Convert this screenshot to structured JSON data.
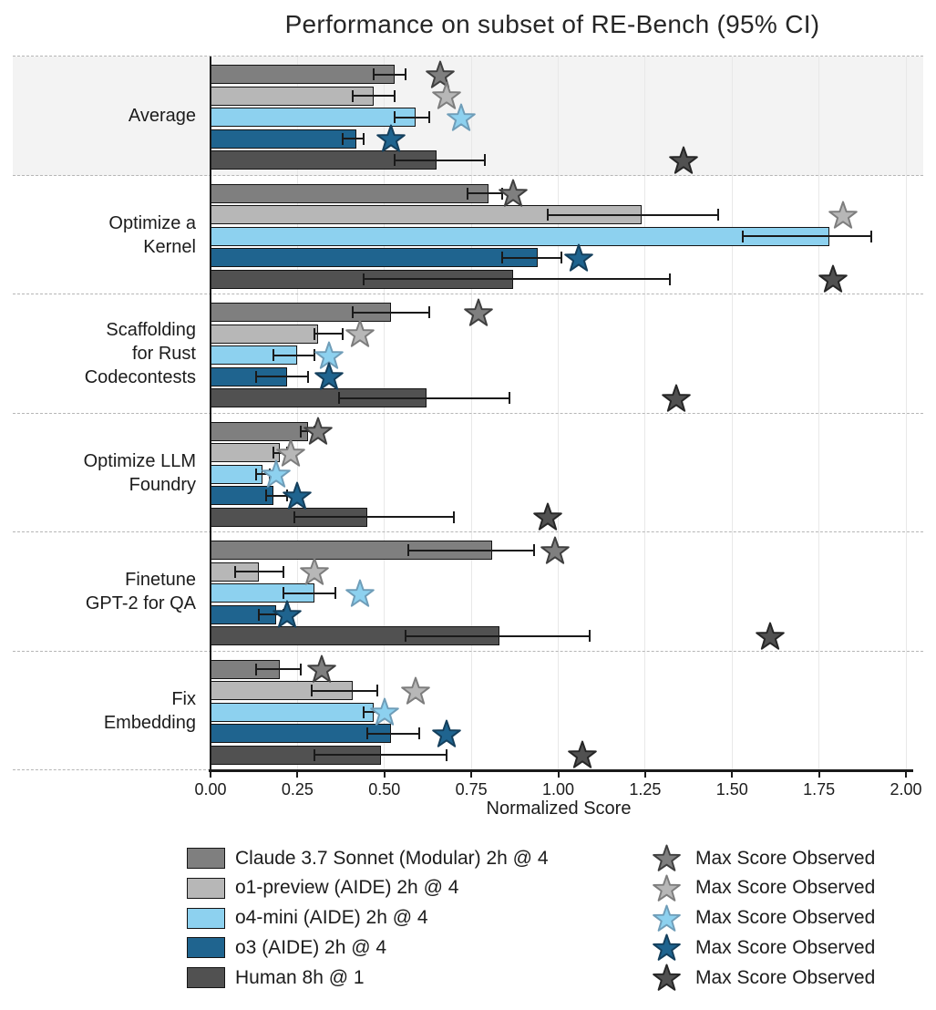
{
  "chart_data": {
    "type": "bar",
    "orientation": "horizontal",
    "title": "Performance on subset of RE-Bench (95% CI)",
    "xlabel": "Normalized Score",
    "xlim": [
      0,
      2.0
    ],
    "xticks": [
      0,
      0.25,
      0.5,
      0.75,
      1.0,
      1.25,
      1.5,
      1.75,
      2.0
    ],
    "xtick_labels": [
      "0.00",
      "0.25",
      "0.50",
      "0.75",
      "1.00",
      "1.25",
      "1.50",
      "1.75",
      "2.00"
    ],
    "grid": "vertical",
    "legend_position": "bottom",
    "highlight_category": "Average",
    "categories": [
      "Average",
      "Optimize a Kernel",
      "Scaffolding for Rust Codecontests",
      "Optimize LLM Foundry",
      "Finetune GPT-2 for QA",
      "Fix Embedding"
    ],
    "category_display": [
      [
        "Average"
      ],
      [
        "Optimize a",
        "Kernel"
      ],
      [
        "Scaffolding",
        "for Rust",
        "Codecontests"
      ],
      [
        "Optimize LLM",
        "Foundry"
      ],
      [
        "Finetune",
        "GPT-2 for QA"
      ],
      [
        "Fix",
        "Embedding"
      ]
    ],
    "ci_note": "error bars show 95% CI; stars show max score observed; null max = beyond axis limit",
    "series": [
      {
        "name": "Claude 3.7 Sonnet (Modular) 2h @ 4",
        "color": "#7f7f7f",
        "star_edge": "#3f3f3f",
        "pattern": "crosshatch",
        "values": [
          0.53,
          0.8,
          0.52,
          0.28,
          0.81,
          0.2
        ],
        "ci_low": [
          0.47,
          0.74,
          0.41,
          0.26,
          0.57,
          0.13
        ],
        "ci_high": [
          0.56,
          0.84,
          0.63,
          0.3,
          0.93,
          0.26
        ],
        "max_observed": [
          0.66,
          0.87,
          0.77,
          0.31,
          0.99,
          0.32
        ]
      },
      {
        "name": "o1-preview (AIDE) 2h @ 4",
        "color": "#b7b7b7",
        "star_edge": "#7d7d7d",
        "pattern": null,
        "values": [
          0.47,
          1.24,
          0.31,
          0.2,
          0.14,
          0.41
        ],
        "ci_low": [
          0.41,
          0.97,
          0.3,
          0.18,
          0.07,
          0.29
        ],
        "ci_high": [
          0.53,
          1.46,
          0.38,
          0.22,
          0.21,
          0.48
        ],
        "max_observed": [
          0.68,
          1.82,
          0.43,
          0.23,
          0.3,
          0.59
        ]
      },
      {
        "name": "o4-mini (AIDE) 2h @ 4",
        "color": "#8dd1ef",
        "star_edge": "#6f9db8",
        "pattern": "dots",
        "values": [
          0.59,
          1.78,
          0.25,
          0.15,
          0.3,
          0.47
        ],
        "ci_low": [
          0.53,
          1.53,
          0.18,
          0.13,
          0.21,
          0.44
        ],
        "ci_high": [
          0.63,
          1.9,
          0.3,
          0.17,
          0.36,
          0.5
        ],
        "max_observed": [
          0.72,
          null,
          0.34,
          0.19,
          0.43,
          0.5
        ]
      },
      {
        "name": "o3 (AIDE) 2h @ 4",
        "color": "#1f648f",
        "star_edge": "#143f5c",
        "pattern": null,
        "values": [
          0.42,
          0.94,
          0.22,
          0.18,
          0.19,
          0.52
        ],
        "ci_low": [
          0.38,
          0.84,
          0.13,
          0.16,
          0.14,
          0.45
        ],
        "ci_high": [
          0.44,
          1.01,
          0.28,
          0.22,
          0.21,
          0.6
        ],
        "max_observed": [
          0.52,
          1.06,
          0.34,
          0.25,
          0.22,
          0.68
        ]
      },
      {
        "name": "Human 8h @ 1",
        "color": "#515151",
        "star_edge": "#262626",
        "pattern": null,
        "values": [
          0.65,
          0.87,
          0.62,
          0.45,
          0.83,
          0.49
        ],
        "ci_low": [
          0.53,
          0.44,
          0.37,
          0.24,
          0.56,
          0.3
        ],
        "ci_high": [
          0.79,
          1.32,
          0.86,
          0.7,
          1.09,
          0.68
        ],
        "max_observed": [
          1.36,
          1.79,
          1.34,
          0.97,
          1.61,
          1.07
        ]
      }
    ],
    "max_legend_label": "Max Score Observed"
  }
}
